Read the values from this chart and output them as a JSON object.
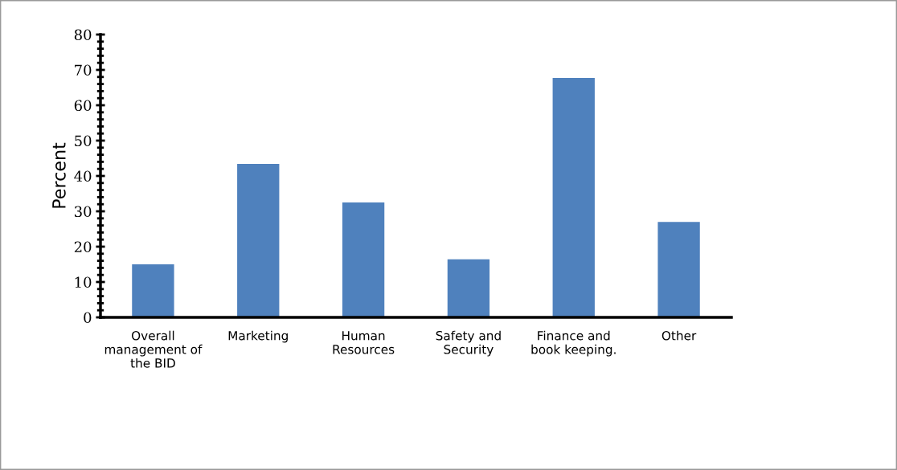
{
  "chart_data": {
    "type": "bar",
    "ylabel": "Percent",
    "categories": [
      "Overall\nmanagement of\nthe BID",
      "Marketing",
      "Human\nResources",
      "Safety and\nSecurity",
      "Finance and\nbook keeping.",
      "Other"
    ],
    "values": [
      15.0,
      43.4,
      32.5,
      16.4,
      67.7,
      27.0
    ],
    "color": "#4f81bd",
    "ylim": [
      0,
      80
    ],
    "yticks": [
      0,
      10,
      20,
      30,
      40,
      50,
      60,
      70,
      80
    ],
    "grid": false,
    "legend": false
  }
}
